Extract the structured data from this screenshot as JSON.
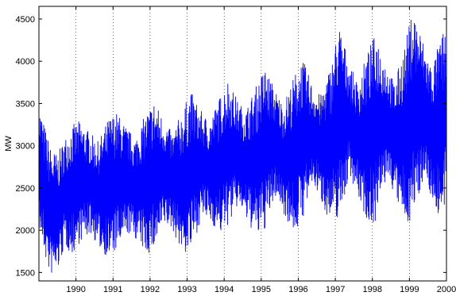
{
  "chart_data": {
    "type": "line",
    "title": "",
    "xlabel": "",
    "ylabel": "MW",
    "line_color": "#0000ff",
    "grid": "vertical dotted at year ticks",
    "xlim": [
      1989.0,
      2000.0
    ],
    "ylim": [
      1400,
      4650
    ],
    "x_ticks": [
      1990,
      1991,
      1992,
      1993,
      1994,
      1995,
      1996,
      1997,
      1998,
      1999,
      2000
    ],
    "x_tick_labels": [
      "1990",
      "1991",
      "1992",
      "1993",
      "1994",
      "1995",
      "1996",
      "1997",
      "1998",
      "1999",
      "2000"
    ],
    "y_ticks": [
      1500,
      2000,
      2500,
      3000,
      3500,
      4000,
      4500
    ],
    "y_tick_labels": [
      "1500",
      "2000",
      "2500",
      "3000",
      "3500",
      "4000",
      "4500"
    ],
    "series": [
      {
        "values_x": [
          1989.0,
          1989.15,
          1989.3,
          1989.5,
          1989.7,
          1989.9,
          1990.1,
          1990.4,
          1990.6,
          1990.9,
          1991.1,
          1991.4,
          1991.6,
          1991.9,
          1992.1,
          1992.4,
          1992.6,
          1992.9,
          1993.1,
          1993.4,
          1993.6,
          1993.9,
          1994.1,
          1994.4,
          1994.6,
          1994.9,
          1995.1,
          1995.4,
          1995.6,
          1995.9,
          1996.1,
          1996.4,
          1996.6,
          1996.9,
          1997.1,
          1997.4,
          1997.6,
          1997.9,
          1998.1,
          1998.4,
          1998.6,
          1998.9,
          1999.1,
          1999.4,
          1999.6,
          1999.9,
          2000.0
        ],
        "upper": [
          3500,
          3250,
          3000,
          2900,
          3100,
          3250,
          3300,
          3150,
          3050,
          3350,
          3400,
          3200,
          3100,
          3400,
          3550,
          3300,
          3150,
          3450,
          3650,
          3400,
          3300,
          3600,
          3800,
          3500,
          3450,
          3750,
          3950,
          3650,
          3500,
          3850,
          4050,
          3700,
          3600,
          4000,
          4450,
          3950,
          3750,
          4150,
          4350,
          3950,
          3750,
          4250,
          4650,
          4200,
          3950,
          4350,
          4400
        ],
        "lower": [
          2000,
          1700,
          1450,
          1500,
          1800,
          1700,
          1850,
          1950,
          1800,
          1650,
          1750,
          1950,
          1900,
          1700,
          1750,
          2050,
          2000,
          1700,
          1750,
          2150,
          2100,
          1950,
          2050,
          2300,
          2100,
          1900,
          2000,
          2400,
          2200,
          1950,
          2100,
          2550,
          2350,
          2050,
          2150,
          2650,
          2400,
          2050,
          2100,
          2650,
          2400,
          2050,
          2150,
          2650,
          2350,
          2050,
          2450
        ]
      }
    ]
  }
}
